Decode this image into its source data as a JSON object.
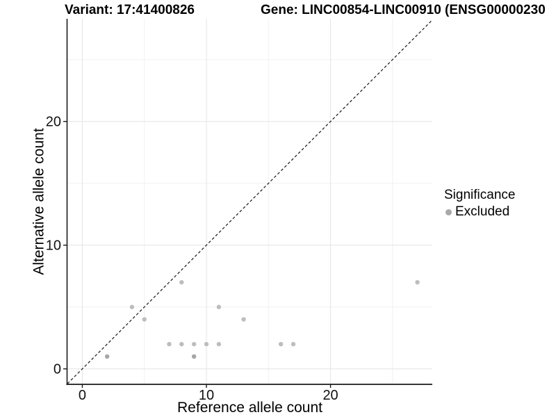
{
  "header": {
    "variant_title": "Variant: 17:41400826",
    "gene_title": "Gene: LINC00854-LINC00910 (ENSG00000230"
  },
  "legend": {
    "title": "Significance",
    "items": [
      {
        "label": "Excluded",
        "color": "#a9a9a9"
      }
    ]
  },
  "chart_data": {
    "type": "scatter",
    "xlabel": "Reference allele count",
    "ylabel": "Alternative allele count",
    "xlim": [
      -1.2,
      28.2
    ],
    "ylim": [
      -1.25,
      28.3
    ],
    "x_major_ticks": [
      0,
      10,
      20
    ],
    "y_major_ticks": [
      0,
      10,
      20
    ],
    "x_minor_gridlines": [
      5,
      15,
      25
    ],
    "y_minor_gridlines": [
      5,
      15,
      25
    ],
    "grid": "on",
    "legend_position": "right",
    "identity_line": {
      "type": "abline y=x",
      "style": "dashed",
      "color": "#262626"
    },
    "point_color": "#bdbdbd",
    "point_color_overplot": "#a6a6a6",
    "points": [
      {
        "x": 2,
        "y": 1,
        "overplot": true
      },
      {
        "x": 4,
        "y": 5
      },
      {
        "x": 5,
        "y": 4
      },
      {
        "x": 7,
        "y": 2
      },
      {
        "x": 8,
        "y": 2
      },
      {
        "x": 8,
        "y": 7
      },
      {
        "x": 9,
        "y": 1,
        "overplot": true
      },
      {
        "x": 9,
        "y": 2
      },
      {
        "x": 10,
        "y": 2
      },
      {
        "x": 11,
        "y": 2
      },
      {
        "x": 11,
        "y": 5
      },
      {
        "x": 13,
        "y": 4
      },
      {
        "x": 16,
        "y": 2
      },
      {
        "x": 17,
        "y": 2
      },
      {
        "x": 27,
        "y": 7
      }
    ],
    "series": [
      {
        "name": "Excluded",
        "color": "#bdbdbd"
      }
    ]
  }
}
